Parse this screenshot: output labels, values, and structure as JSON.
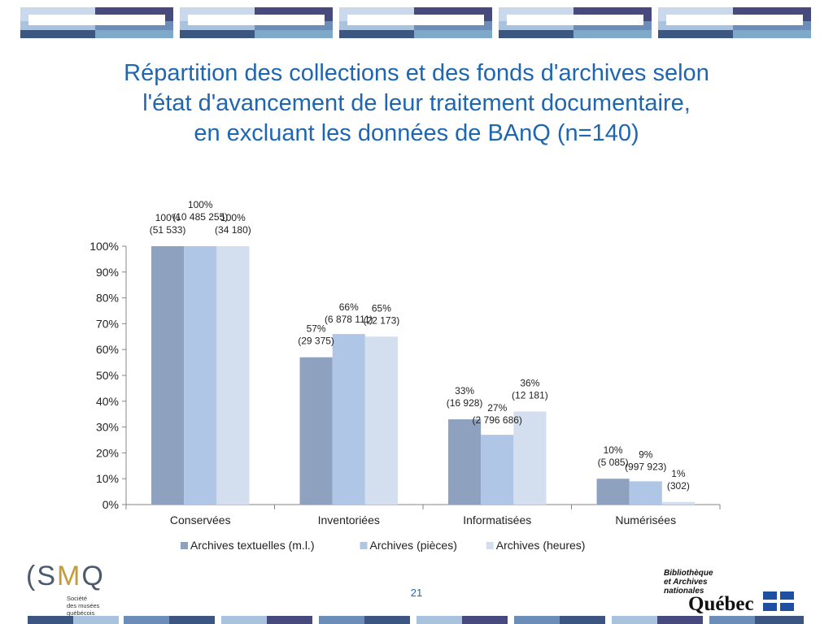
{
  "title": {
    "lines": [
      "Répartition des collections et des fonds d'archives selon",
      "l'état d'avancement de leur traitement documentaire,",
      "en excluant les données de BAnQ (n=140)"
    ]
  },
  "chart_data": {
    "type": "bar",
    "categories": [
      "Conservées",
      "Inventoriées",
      "Informatisées",
      "Numérisées"
    ],
    "series": [
      {
        "name": "Archives textuelles (m.l.)",
        "color": "#8ea2bf",
        "values": [
          100,
          57,
          33,
          10
        ],
        "labels": [
          [
            "100%",
            "(51 533)"
          ],
          [
            "57%",
            "(29 375)"
          ],
          [
            "33%",
            "(16 928)"
          ],
          [
            "10%",
            "(5 085)"
          ]
        ]
      },
      {
        "name": "Archives (pièces)",
        "color": "#b0c6e6",
        "values": [
          100,
          66,
          27,
          9
        ],
        "labels": [
          [
            "100%",
            "(10 485 255)"
          ],
          [
            "66%",
            "(6 878 111)"
          ],
          [
            "27%",
            "(2 796 686)"
          ],
          [
            "9%",
            "(997 923)"
          ]
        ]
      },
      {
        "name": "Archives (heures)",
        "color": "#d3deef",
        "values": [
          100,
          65,
          36,
          1
        ],
        "labels": [
          [
            "100%",
            "(34 180)"
          ],
          [
            "65%",
            "(22 173)"
          ],
          [
            "36%",
            "(12 181)"
          ],
          [
            "1%",
            "(302)"
          ]
        ]
      }
    ],
    "ylim": [
      0,
      100
    ],
    "yticks": [
      "0%",
      "10%",
      "20%",
      "30%",
      "40%",
      "50%",
      "60%",
      "70%",
      "80%",
      "90%",
      "100%"
    ],
    "grid": false,
    "legend_position": "bottom"
  },
  "footer": {
    "page_number": "21",
    "smq_logo": {
      "letters_left": "(S",
      "letters_mid": "M",
      "letters_right": "Q",
      "lines": [
        "Société",
        "des musées",
        "québécois"
      ]
    },
    "banq_logo": {
      "lines": [
        "Bibliothèque",
        "et Archives",
        "nationales"
      ],
      "quebec": "Québec"
    }
  },
  "colors": {
    "title": "#1f66b0",
    "axis": "#868686",
    "text": "#222222"
  }
}
